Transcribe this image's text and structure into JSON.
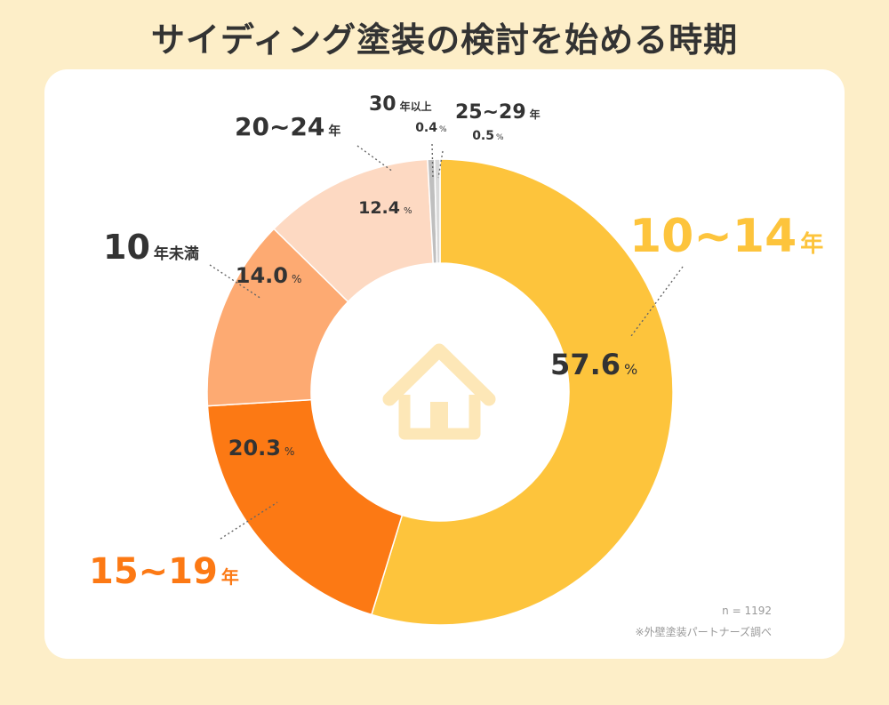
{
  "title": "サイディング塗装の検討を始める時期",
  "chart_data": {
    "type": "pie",
    "donut": true,
    "categories": [
      "10~14年",
      "15~19年",
      "10年未満",
      "20~24年",
      "30年以上",
      "25~29年"
    ],
    "values": [
      57.6,
      20.3,
      14.0,
      12.4,
      0.4,
      0.5
    ],
    "value_labels": [
      "57.6",
      "20.3",
      "14.0",
      "12.4",
      "0.4",
      "0.5"
    ],
    "percent_sign": "%",
    "colors": [
      "#fdc43c",
      "#fc7914",
      "#fdaa72",
      "#fdd9c2",
      "#d9d9d9",
      "#bfbfbf"
    ],
    "draw_order": [
      0,
      1,
      2,
      3,
      5,
      4
    ],
    "center_icon": "house-icon",
    "center_icon_color": "#fde7b7",
    "labels": [
      {
        "number": "10~14",
        "suffix": "年",
        "color": "#fdc43c"
      },
      {
        "number": "15~19",
        "suffix": "年",
        "color": "#fc7914"
      },
      {
        "number": "10",
        "suffix": "年未満",
        "color": "#333333"
      },
      {
        "number": "20~24",
        "suffix": "年",
        "color": "#333333"
      },
      {
        "number": "30",
        "suffix": "年以上",
        "color": "#333333"
      },
      {
        "number": "25~29",
        "suffix": "年",
        "color": "#333333"
      }
    ]
  },
  "footnotes": {
    "sample": "n = 1192",
    "source": "※外壁塗装パートナーズ調べ"
  }
}
